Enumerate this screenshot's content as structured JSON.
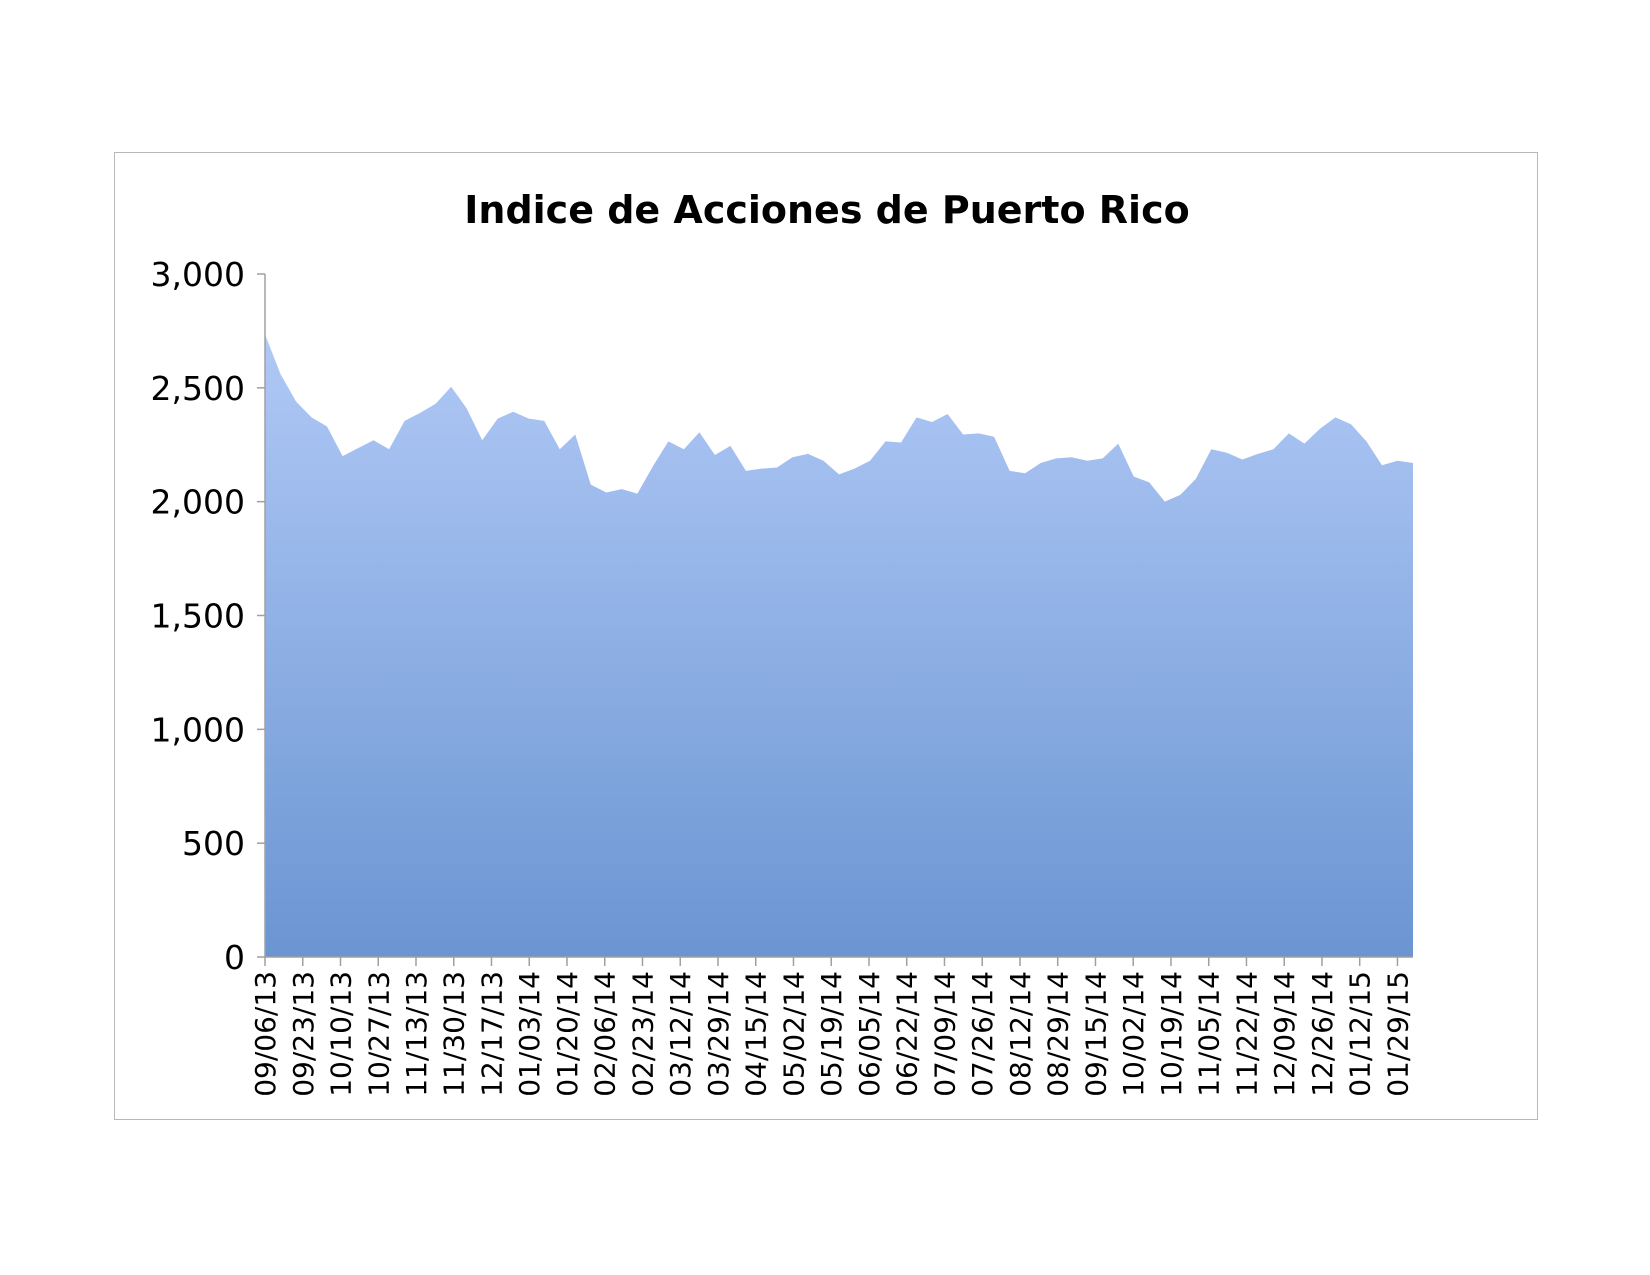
{
  "chart_data": {
    "type": "area",
    "title": "Indice de Acciones de Puerto Rico",
    "xlabel": "",
    "ylabel": "",
    "ylim": [
      0,
      3000
    ],
    "yticks": [
      "0",
      "500",
      "1,000",
      "1,500",
      "2,000",
      "2,500",
      "3,000"
    ],
    "ytick_values": [
      0,
      500,
      1000,
      1500,
      2000,
      2500,
      3000
    ],
    "xtick_labels": [
      "09/06/13",
      "09/23/13",
      "10/10/13",
      "10/27/13",
      "11/13/13",
      "11/30/13",
      "12/17/13",
      "01/03/14",
      "01/20/14",
      "02/06/14",
      "02/23/14",
      "03/12/14",
      "03/29/14",
      "04/15/14",
      "05/02/14",
      "05/19/14",
      "06/05/14",
      "06/22/14",
      "07/09/14",
      "07/26/14",
      "08/12/14",
      "08/29/14",
      "09/15/14",
      "10/02/14",
      "10/19/14",
      "11/05/14",
      "11/22/14",
      "12/09/14",
      "12/26/14",
      "01/12/15",
      "01/29/15"
    ],
    "x_start": "09/06/13",
    "x_end": "02/05/15",
    "series": [
      {
        "values": [
          2735,
          2560,
          2440,
          2370,
          2330,
          2200,
          2235,
          2270,
          2230,
          2355,
          2390,
          2430,
          2505,
          2410,
          2270,
          2365,
          2395,
          2365,
          2355,
          2230,
          2295,
          2075,
          2040,
          2055,
          2035,
          2155,
          2265,
          2230,
          2305,
          2205,
          2245,
          2135,
          2145,
          2150,
          2195,
          2210,
          2180,
          2120,
          2145,
          2180,
          2265,
          2260,
          2370,
          2350,
          2385,
          2295,
          2300,
          2285,
          2135,
          2125,
          2170,
          2190,
          2195,
          2180,
          2190,
          2255,
          2110,
          2085,
          2000,
          2030,
          2100,
          2230,
          2215,
          2185,
          2210,
          2230,
          2300,
          2255,
          2320,
          2370,
          2340,
          2265,
          2160,
          2180,
          2170
        ]
      }
    ],
    "colors": {
      "fill_top": "#b0c9f6",
      "fill_bottom": "#6b95d2",
      "axis": "#a0a0a0"
    }
  }
}
